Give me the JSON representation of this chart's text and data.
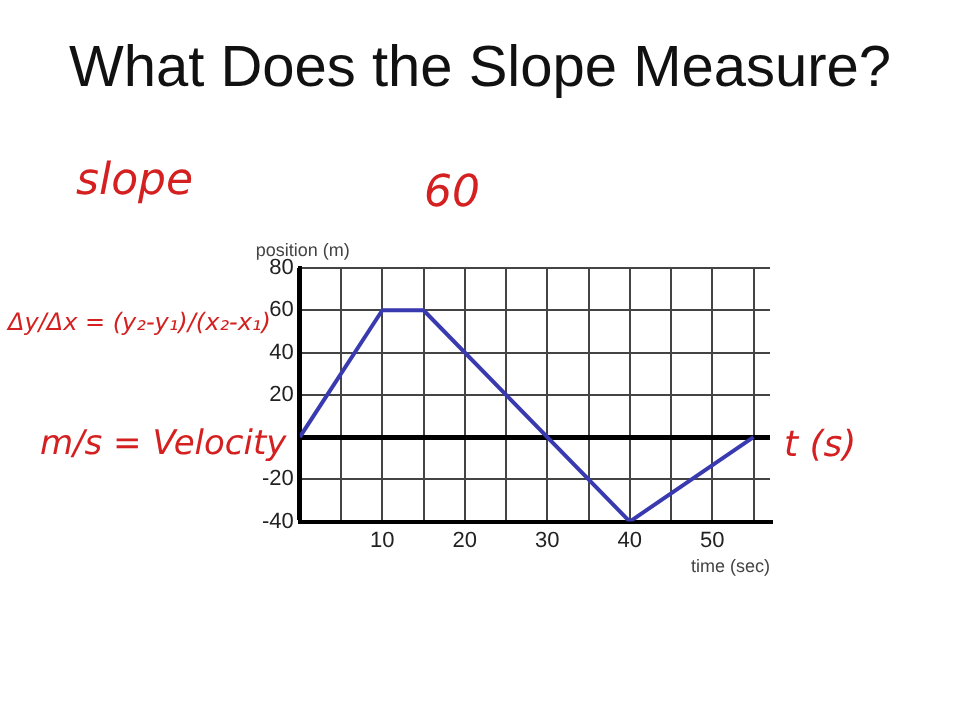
{
  "chart_data": {
    "type": "line",
    "title": "What Does the Slope Measure?",
    "xlabel": "time (sec)",
    "ylabel": "position (m)",
    "x": [
      0,
      10,
      15,
      40,
      55
    ],
    "series": [
      {
        "color": "#3a3ab0",
        "values": [
          0,
          60,
          60,
          -40,
          0
        ]
      }
    ],
    "xlim": [
      0,
      57
    ],
    "xticks": [
      {
        "value": 0,
        "label": null
      },
      {
        "value": 5,
        "label": null
      },
      10,
      {
        "value": 15,
        "label": null
      },
      20,
      {
        "value": 25,
        "label": null
      },
      30,
      {
        "value": 35,
        "label": null
      },
      40,
      {
        "value": 45,
        "label": null
      },
      50,
      {
        "value": 55,
        "label": null
      }
    ],
    "ylim": [
      -40,
      80
    ],
    "yticks": [
      -40,
      -20,
      {
        "value": 0,
        "label": null
      },
      20,
      40,
      60,
      80
    ],
    "grid": true,
    "legend": false,
    "marker": "none",
    "line_style": "solid",
    "annotations": [
      "slope",
      "60",
      "Δy/Δx = (y₂-y₁)/(x₂-x₁)",
      "m/s = Velocity",
      "t (s)"
    ]
  }
}
